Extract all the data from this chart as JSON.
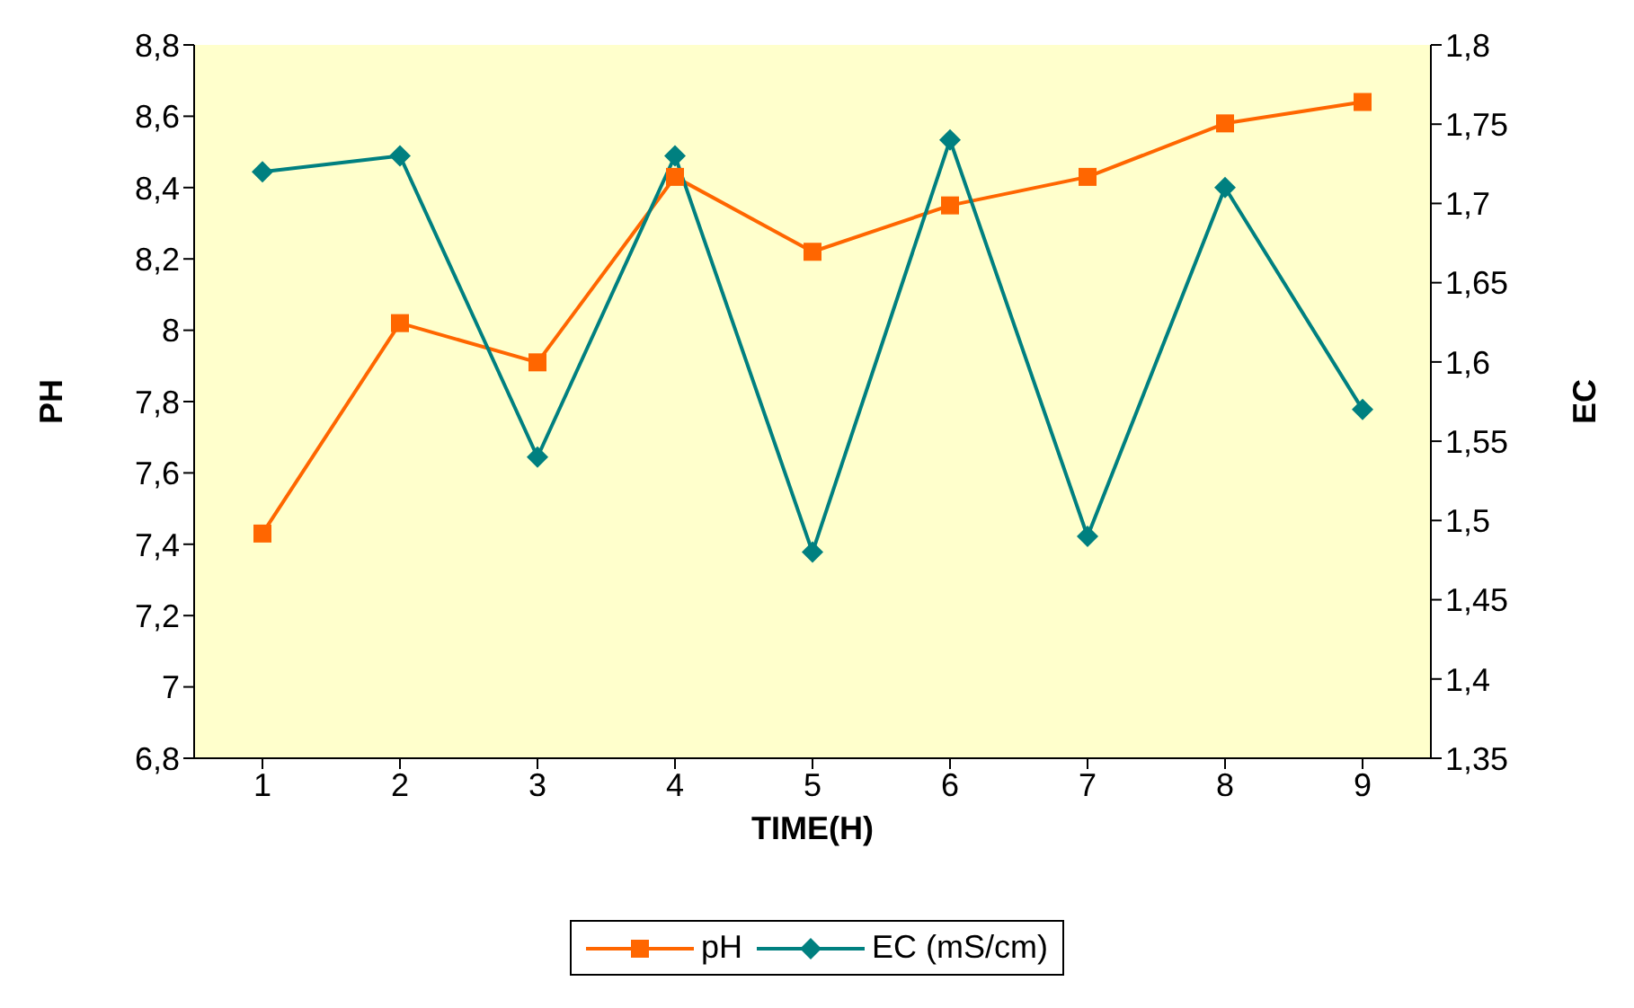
{
  "chart_data": {
    "type": "line",
    "xlabel": "TIME(H)",
    "ylabel": "PH",
    "y2label": "EC",
    "categories": [
      "1",
      "2",
      "3",
      "4",
      "5",
      "6",
      "7",
      "8",
      "9"
    ],
    "series": [
      {
        "name": "pH",
        "color": "#ff6600",
        "marker": "square",
        "values": [
          7.43,
          8.02,
          7.91,
          8.43,
          8.22,
          8.35,
          8.43,
          8.58,
          8.64
        ]
      },
      {
        "name": "EC (mS/cm)",
        "color": "#008080",
        "marker": "diamond",
        "axis": "y2",
        "values": [
          1.72,
          1.73,
          1.54,
          1.73,
          1.48,
          1.74,
          1.49,
          1.71,
          1.57
        ]
      }
    ],
    "ylim": [
      6.8,
      8.8
    ],
    "yticks": [
      {
        "value": 6.8,
        "label": "6,8"
      },
      {
        "value": 7,
        "label": "7"
      },
      {
        "value": 7.2,
        "label": "7,2"
      },
      {
        "value": 7.4,
        "label": "7,4"
      },
      {
        "value": 7.6,
        "label": "7,6"
      },
      {
        "value": 7.8,
        "label": "7,8"
      },
      {
        "value": 8,
        "label": "8"
      },
      {
        "value": 8.2,
        "label": "8,2"
      },
      {
        "value": 8.4,
        "label": "8,4"
      },
      {
        "value": 8.6,
        "label": "8,6"
      },
      {
        "value": 8.8,
        "label": "8,8"
      }
    ],
    "y2lim": [
      1.35,
      1.8
    ],
    "y2ticks": [
      {
        "value": 1.35,
        "label": "1,35"
      },
      {
        "value": 1.4,
        "label": "1,4"
      },
      {
        "value": 1.45,
        "label": "1,45"
      },
      {
        "value": 1.5,
        "label": "1,5"
      },
      {
        "value": 1.55,
        "label": "1,55"
      },
      {
        "value": 1.6,
        "label": "1,6"
      },
      {
        "value": 1.65,
        "label": "1,65"
      },
      {
        "value": 1.7,
        "label": "1,7"
      },
      {
        "value": 1.75,
        "label": "1,75"
      },
      {
        "value": 1.8,
        "label": "1,8"
      }
    ],
    "grid": false,
    "legend": "bottom",
    "line_style": "solid"
  }
}
